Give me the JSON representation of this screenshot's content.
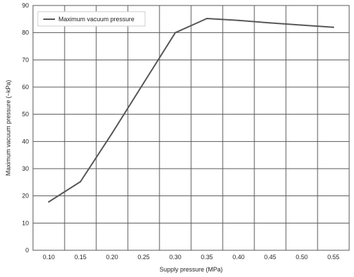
{
  "chart_data": {
    "type": "line",
    "title": "",
    "xlabel": "Supply pressure (MPa)",
    "ylabel": "Maximum vacuum pressure (−kPa)",
    "categories": [
      "0.10",
      "0.15",
      "0.20",
      "0.25",
      "0.30",
      "0.35",
      "0.40",
      "0.45",
      "0.50",
      "0.55"
    ],
    "xlim": [
      0.075,
      0.575
    ],
    "ylim": [
      0,
      90
    ],
    "yticks": [
      0,
      10,
      20,
      30,
      40,
      50,
      60,
      70,
      80,
      90
    ],
    "grid": true,
    "legend_position": "top-left",
    "series": [
      {
        "name": "Maximum vacuum pressure",
        "color": "#555555",
        "x": [
          0.1,
          0.15,
          0.2,
          0.25,
          0.3,
          0.35,
          0.4,
          0.45,
          0.5,
          0.55
        ],
        "values": [
          17.8,
          25.2,
          43,
          61.5,
          80,
          85.2,
          84.5,
          83.6,
          82.8,
          82
        ]
      }
    ]
  }
}
